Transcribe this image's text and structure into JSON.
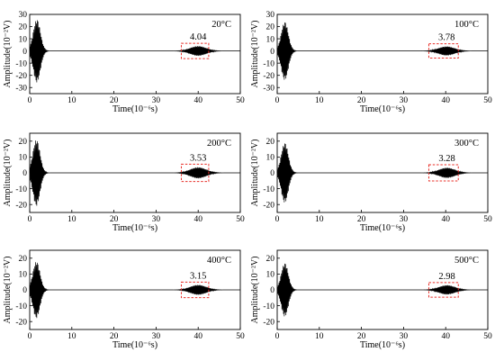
{
  "chart_data": [
    {
      "type": "line",
      "temperature_label": "20°C",
      "peak_label": "4.04",
      "xlabel": "Time(10⁻⁶s)",
      "ylabel": "Amplitude(10⁻²V)",
      "xlim": [
        0,
        50
      ],
      "ylim": [
        -35,
        30
      ],
      "xticks": [
        0,
        10,
        20,
        30,
        40,
        50
      ],
      "yticks": [
        -30,
        -20,
        -10,
        0,
        10,
        20,
        30
      ],
      "first_burst": {
        "center": 1.7,
        "peak_amplitude": 26
      },
      "second_burst": {
        "center": 40.0,
        "peak_amplitude": 4.04
      },
      "highlight_box_x": [
        36,
        42.5
      ]
    },
    {
      "type": "line",
      "temperature_label": "100°C",
      "peak_label": "3.78",
      "xlabel": "Time(10⁻⁶s)",
      "ylabel": "Amplitude(10⁻²V)",
      "xlim": [
        0,
        50
      ],
      "ylim": [
        -35,
        30
      ],
      "xticks": [
        0,
        10,
        20,
        30,
        40,
        50
      ],
      "yticks": [
        -30,
        -20,
        -10,
        0,
        10,
        20,
        30
      ],
      "first_burst": {
        "center": 1.8,
        "peak_amplitude": 24
      },
      "second_burst": {
        "center": 40.2,
        "peak_amplitude": 3.78
      },
      "highlight_box_x": [
        36,
        43
      ]
    },
    {
      "type": "line",
      "temperature_label": "200°C",
      "peak_label": "3.53",
      "xlabel": "Time(10⁻⁶s)",
      "ylabel": "Amplitude(10⁻²V)",
      "xlim": [
        0,
        50
      ],
      "ylim": [
        -25,
        25
      ],
      "xticks": [
        0,
        10,
        20,
        30,
        40,
        50
      ],
      "yticks": [
        -20,
        -10,
        0,
        10,
        20
      ],
      "first_burst": {
        "center": 1.6,
        "peak_amplitude": 21
      },
      "second_burst": {
        "center": 40.0,
        "peak_amplitude": 3.53
      },
      "highlight_box_x": [
        36,
        42.5
      ]
    },
    {
      "type": "line",
      "temperature_label": "300°C",
      "peak_label": "3.28",
      "xlabel": "Time(10⁻⁶s)",
      "ylabel": "Amplitude(10⁻²V)",
      "xlim": [
        0,
        50
      ],
      "ylim": [
        -25,
        25
      ],
      "xticks": [
        0,
        10,
        20,
        30,
        40,
        50
      ],
      "yticks": [
        -20,
        -10,
        0,
        10,
        20
      ],
      "first_burst": {
        "center": 1.8,
        "peak_amplitude": 19
      },
      "second_burst": {
        "center": 40.3,
        "peak_amplitude": 3.28
      },
      "highlight_box_x": [
        36,
        43
      ]
    },
    {
      "type": "line",
      "temperature_label": "400°C",
      "peak_label": "3.15",
      "xlabel": "Time(10⁻⁶s)",
      "ylabel": "Amplitude(10⁻²V)",
      "xlim": [
        0,
        50
      ],
      "ylim": [
        -25,
        25
      ],
      "xticks": [
        0,
        10,
        20,
        30,
        40,
        50
      ],
      "yticks": [
        -20,
        -10,
        0,
        10,
        20
      ],
      "first_burst": {
        "center": 1.6,
        "peak_amplitude": 18
      },
      "second_burst": {
        "center": 40.0,
        "peak_amplitude": 3.15
      },
      "highlight_box_x": [
        36,
        42.5
      ]
    },
    {
      "type": "line",
      "temperature_label": "500°C",
      "peak_label": "2.98",
      "xlabel": "Time(10⁻⁶s)",
      "ylabel": "Amplitude(10⁻²V)",
      "xlim": [
        0,
        50
      ],
      "ylim": [
        -25,
        25
      ],
      "xticks": [
        0,
        10,
        20,
        30,
        40,
        50
      ],
      "yticks": [
        -20,
        -10,
        0,
        10,
        20
      ],
      "first_burst": {
        "center": 1.8,
        "peak_amplitude": 17
      },
      "second_burst": {
        "center": 40.3,
        "peak_amplitude": 2.98
      },
      "highlight_box_x": [
        36,
        43
      ]
    }
  ],
  "colors": {
    "signal": "#000000",
    "highlight_box": "#e8302a",
    "frame": "#000000"
  }
}
